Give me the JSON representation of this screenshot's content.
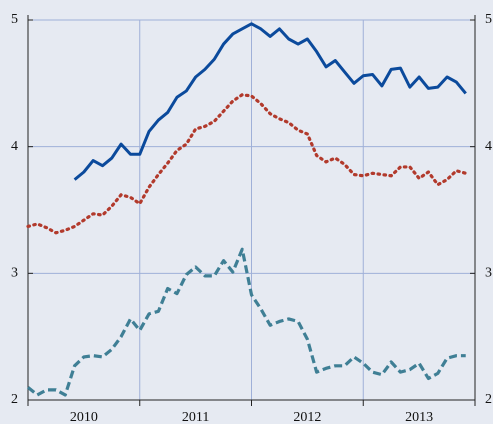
{
  "chart_data": {
    "type": "line",
    "x": [
      2010,
      2010.083,
      2010.167,
      2010.25,
      2010.333,
      2010.417,
      2010.5,
      2010.583,
      2010.667,
      2010.75,
      2010.833,
      2010.917,
      2011,
      2011.083,
      2011.167,
      2011.25,
      2011.333,
      2011.417,
      2011.5,
      2011.583,
      2011.667,
      2011.75,
      2011.833,
      2011.917,
      2012,
      2012.083,
      2012.167,
      2012.25,
      2012.333,
      2012.417,
      2012.5,
      2012.583,
      2012.667,
      2012.75,
      2012.833,
      2012.917,
      2013,
      2013.083,
      2013.167,
      2013.25,
      2013.333,
      2013.417,
      2013.5,
      2013.583,
      2013.667,
      2013.75,
      2013.833,
      2013.917
    ],
    "series": [
      {
        "color": "#0b4a9c",
        "style": "solid",
        "values": [
          null,
          null,
          null,
          null,
          null,
          3.74,
          3.8,
          3.89,
          3.85,
          3.91,
          4.02,
          3.94,
          3.94,
          4.12,
          4.21,
          4.27,
          4.39,
          4.44,
          4.55,
          4.61,
          4.69,
          4.81,
          4.89,
          4.93,
          4.97,
          4.93,
          4.87,
          4.93,
          4.85,
          4.81,
          4.85,
          4.75,
          4.63,
          4.68,
          4.59,
          4.5,
          4.56,
          4.57,
          4.48,
          4.61,
          4.62,
          4.47,
          4.55,
          4.46,
          4.47,
          4.55,
          4.51,
          4.42
        ]
      },
      {
        "color": "#b23a2c",
        "style": "dotted",
        "values": [
          3.37,
          3.39,
          3.36,
          3.32,
          3.34,
          3.37,
          3.42,
          3.47,
          3.46,
          3.53,
          3.62,
          3.6,
          3.55,
          3.68,
          3.78,
          3.87,
          3.97,
          4.02,
          4.14,
          4.16,
          4.2,
          4.28,
          4.36,
          4.41,
          4.4,
          4.34,
          4.26,
          4.22,
          4.19,
          4.13,
          4.1,
          3.93,
          3.88,
          3.91,
          3.86,
          3.78,
          3.77,
          3.79,
          3.78,
          3.77,
          3.84,
          3.84,
          3.75,
          3.8,
          3.7,
          3.74,
          3.81,
          3.79
        ]
      },
      {
        "color": "#3f7f95",
        "style": "dashed",
        "values": [
          2.1,
          2.04,
          2.08,
          2.08,
          2.04,
          2.27,
          2.34,
          2.35,
          2.34,
          2.4,
          2.5,
          2.64,
          2.55,
          2.68,
          2.7,
          2.88,
          2.84,
          2.99,
          3.05,
          2.98,
          2.98,
          3.1,
          3.01,
          3.19,
          2.83,
          2.72,
          2.59,
          2.62,
          2.64,
          2.62,
          2.48,
          2.22,
          2.25,
          2.27,
          2.27,
          2.34,
          2.29,
          2.22,
          2.2,
          2.3,
          2.22,
          2.24,
          2.29,
          2.17,
          2.21,
          2.33,
          2.35,
          2.35
        ]
      }
    ],
    "xlim": [
      2010,
      2014
    ],
    "xticks": [
      {
        "value": 2010.5,
        "label": "2010"
      },
      {
        "value": 2011.5,
        "label": "2011"
      },
      {
        "value": 2012.5,
        "label": "2012"
      },
      {
        "value": 2013.5,
        "label": "2013"
      }
    ],
    "xgrid": [
      2011,
      2012,
      2013
    ],
    "ylim": [
      2,
      5
    ],
    "yticks": [
      2,
      3,
      4,
      5
    ],
    "grid": true
  }
}
